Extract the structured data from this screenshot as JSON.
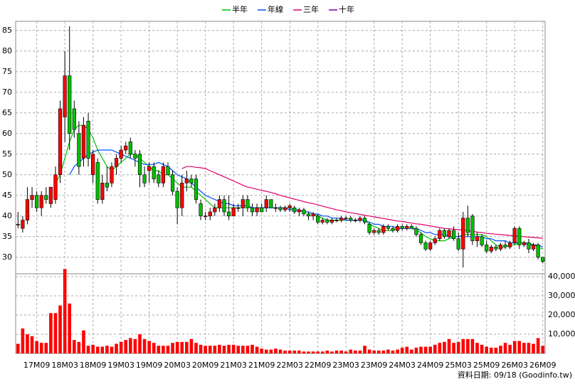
{
  "chart_data": {
    "type": "candlestick",
    "legend": "top",
    "grid": true,
    "up_color": "#ff0000",
    "down_color": "#00c000",
    "categories": [
      null,
      null,
      null,
      null,
      "17M09",
      null,
      null,
      null,
      null,
      null,
      "18M03",
      null,
      null,
      null,
      null,
      null,
      "18M09",
      null,
      null,
      null,
      null,
      null,
      "19M03",
      null,
      null,
      null,
      null,
      null,
      "19M09",
      null,
      null,
      null,
      null,
      null,
      "20M03",
      null,
      null,
      null,
      null,
      null,
      "20M09",
      null,
      null,
      null,
      null,
      null,
      "21M03",
      null,
      null,
      null,
      null,
      null,
      "21M09",
      null,
      null,
      null,
      null,
      null,
      "22M03",
      null,
      null,
      null,
      null,
      null,
      "22M09",
      null,
      null,
      null,
      null,
      null,
      "23M03",
      null,
      null,
      null,
      null,
      null,
      "23M09",
      null,
      null,
      null,
      null,
      null,
      "24M03",
      null,
      null,
      null,
      null,
      null,
      "24M09",
      null,
      null,
      null,
      null,
      null,
      "25M03",
      null,
      null,
      null,
      null,
      null,
      "25M09",
      null,
      null,
      null,
      null,
      null,
      "26M03",
      null,
      null,
      null,
      null,
      null,
      "26M09"
    ],
    "open": [
      38,
      37,
      39,
      44,
      45,
      42,
      45,
      43,
      44,
      50,
      64,
      74,
      66,
      60,
      54,
      63,
      50,
      53,
      44,
      48,
      48,
      52,
      54,
      56,
      58,
      55,
      55,
      50,
      51,
      52,
      50,
      48,
      52,
      50,
      46,
      42,
      48,
      49,
      49,
      43,
      40,
      40,
      41,
      42,
      44,
      41,
      40,
      42,
      42,
      44,
      42,
      41,
      42,
      42,
      44,
      42,
      42,
      41.5,
      42,
      42,
      41,
      41.5,
      40.5,
      40,
      40,
      38.5,
      39,
      38.5,
      39,
      39,
      39.5,
      39.5,
      39,
      39,
      39.5,
      38,
      36,
      36.5,
      36,
      37.5,
      37,
      36.5,
      37.5,
      37,
      37.5,
      37,
      35.5,
      33.5,
      32,
      33.5,
      34.5,
      36.5,
      35,
      36.5,
      34.5,
      32,
      39.5,
      40,
      34,
      35,
      33,
      31.5,
      32.5,
      32,
      33,
      32.5,
      33.5,
      37,
      33,
      33.5,
      32,
      33,
      30
    ],
    "high": [
      41,
      40,
      47,
      47,
      46,
      46,
      47,
      47,
      52,
      68,
      80,
      86,
      68,
      63,
      64,
      65,
      56,
      54,
      50,
      52,
      53,
      55,
      57,
      58,
      59,
      56,
      56,
      52,
      53,
      53,
      51,
      53,
      53,
      51,
      47,
      50,
      51,
      50,
      50,
      44,
      41,
      42,
      43,
      45,
      45,
      45,
      43,
      43,
      45,
      45,
      43,
      43,
      43,
      45,
      44,
      43,
      42.5,
      42.5,
      43,
      42.5,
      42,
      42,
      41,
      41,
      40.5,
      39.5,
      39.5,
      39.5,
      39.5,
      40,
      40,
      40,
      39.5,
      40,
      40,
      38.5,
      37,
      37,
      38,
      38,
      37.5,
      38,
      38,
      38,
      38,
      37.5,
      36,
      34,
      34,
      35,
      37,
      37,
      37,
      37.5,
      36,
      41,
      42.5,
      40.5,
      36,
      35.5,
      34,
      33,
      33,
      33.5,
      34,
      34,
      37.5,
      37.5,
      34,
      34.5,
      33.5,
      33.5,
      30
    ],
    "low": [
      37,
      36,
      38,
      42,
      41,
      40,
      43,
      42,
      43,
      48,
      58,
      56,
      59,
      50,
      52,
      52,
      48,
      43,
      43,
      46,
      47,
      50,
      53,
      55,
      54,
      52,
      47,
      47,
      48,
      48,
      47,
      47,
      50,
      45,
      38,
      40,
      46,
      47,
      43,
      39,
      39,
      39,
      40,
      41,
      40,
      39,
      40,
      41,
      40,
      41,
      40,
      40,
      41,
      41,
      42,
      41,
      41,
      41,
      41,
      40.5,
      40,
      40,
      39,
      39,
      38,
      38,
      38,
      38,
      38.5,
      38.5,
      39,
      38.5,
      38.5,
      38.5,
      38,
      35.5,
      35.5,
      35.5,
      35.5,
      36.5,
      36,
      36,
      36.5,
      36.5,
      37,
      35,
      33,
      31.5,
      31.5,
      33,
      34,
      34.5,
      34.5,
      34,
      31.5,
      27.5,
      35,
      33,
      32.5,
      32.5,
      31,
      31,
      31.5,
      31.5,
      32,
      32,
      33,
      32,
      32.5,
      31,
      31.5,
      29.5,
      28.5
    ],
    "close": [
      38,
      39,
      44,
      45,
      42,
      45,
      44,
      47,
      50,
      66,
      74,
      60,
      61,
      52,
      62,
      54,
      55,
      44,
      48,
      47,
      52,
      54,
      56,
      57,
      55,
      54,
      50,
      48,
      52,
      49,
      48,
      52,
      50,
      46,
      42,
      48,
      49,
      48,
      44,
      40,
      40,
      41,
      42,
      44,
      41,
      40,
      42,
      42,
      44,
      42,
      41,
      42,
      41,
      44,
      42,
      42,
      41.5,
      42,
      42.5,
      41,
      41.5,
      40.5,
      40,
      40.5,
      38.5,
      39,
      38.5,
      39,
      39,
      39.5,
      39.5,
      39,
      39,
      39.5,
      38.5,
      36,
      36.5,
      36,
      37.5,
      37,
      36.5,
      37.5,
      37,
      37.5,
      37,
      35.5,
      33.5,
      32,
      33.5,
      34.5,
      36.5,
      35,
      36.5,
      34.5,
      32,
      39.5,
      36,
      34,
      35,
      33,
      31.5,
      32.5,
      32,
      33,
      32.5,
      33.5,
      37,
      33,
      33.5,
      32,
      33,
      30,
      29
    ],
    "series": [
      {
        "name": "半年",
        "color": "#00c000",
        "values": [
          null,
          null,
          null,
          null,
          null,
          null,
          null,
          null,
          48,
          50,
          54,
          58,
          61,
          62,
          62,
          61,
          59,
          56,
          54,
          52,
          51,
          52,
          53,
          54,
          55,
          55,
          54,
          53,
          52,
          51,
          51,
          50,
          50,
          49,
          48,
          47,
          47,
          47,
          46,
          45,
          44,
          43,
          42,
          42,
          42,
          42,
          42,
          42,
          42,
          42,
          42,
          42,
          42,
          42,
          42,
          42,
          42,
          42,
          42,
          41.5,
          41.5,
          41,
          41,
          40.5,
          40,
          39.5,
          39,
          39,
          39,
          39,
          39,
          39,
          39,
          39,
          39,
          38,
          37.5,
          37,
          36.5,
          36.5,
          36.5,
          37,
          37,
          37,
          37,
          36.5,
          36,
          35,
          34.5,
          34,
          34,
          34,
          34.5,
          35,
          35,
          35.5,
          35.5,
          35.5,
          35.5,
          35.5,
          35,
          34,
          33,
          32.5,
          32.5,
          33,
          33,
          33.5,
          33.5,
          33.5,
          33,
          32.5,
          32
        ]
      },
      {
        "name": "年線",
        "color": "#0050ff",
        "values": [
          null,
          null,
          null,
          null,
          null,
          null,
          null,
          null,
          null,
          null,
          null,
          50,
          52,
          53,
          54,
          55,
          55.5,
          56,
          56,
          56,
          56,
          55.5,
          55,
          54.5,
          54,
          53.5,
          53,
          52.5,
          52.5,
          52.5,
          53,
          52.5,
          52,
          51,
          50,
          49.5,
          49,
          48,
          47,
          46,
          45,
          44.5,
          44,
          43.5,
          43,
          43,
          42.5,
          42.5,
          42.5,
          42.5,
          42,
          42,
          42,
          42,
          42,
          42,
          42,
          42,
          41.5,
          41.5,
          41.5,
          41,
          41,
          40.5,
          40.5,
          40,
          40,
          39.5,
          39.5,
          39.5,
          39,
          39,
          39,
          39,
          39,
          38.5,
          38,
          38,
          37.5,
          37.5,
          37.5,
          37,
          37,
          37,
          37,
          37,
          36.5,
          36,
          36,
          35.5,
          35.5,
          35.5,
          35,
          35,
          35,
          35,
          35,
          35,
          35,
          35,
          34.5,
          34.5,
          34,
          34,
          34,
          33.5,
          33.5,
          33.5,
          33.5,
          33,
          33,
          33,
          32.5
        ]
      },
      {
        "name": "三年",
        "color": "#e0006a",
        "values": [
          null,
          null,
          null,
          null,
          null,
          null,
          null,
          null,
          null,
          null,
          null,
          null,
          null,
          null,
          null,
          null,
          null,
          null,
          null,
          null,
          null,
          null,
          null,
          null,
          null,
          null,
          null,
          null,
          null,
          null,
          null,
          null,
          null,
          null,
          null,
          51.5,
          52,
          52,
          51.8,
          51.7,
          51.5,
          51,
          50.5,
          50,
          49.5,
          49,
          48.5,
          48,
          47.5,
          47,
          46.8,
          46.5,
          46.2,
          46,
          45.7,
          45.4,
          45,
          44.7,
          44.4,
          44.1,
          43.8,
          43.5,
          43.2,
          43,
          42.7,
          42.4,
          42.1,
          41.8,
          41.5,
          41.3,
          41,
          40.8,
          40.6,
          40.4,
          40.2,
          40,
          39.8,
          39.6,
          39.4,
          39.2,
          39,
          38.8,
          38.7,
          38.5,
          38.3,
          38.1,
          38,
          37.8,
          37.6,
          37.4,
          37.2,
          37,
          36.9,
          36.8,
          36.7,
          36.6,
          36.5,
          36.3,
          36.1,
          36,
          35.8,
          35.7,
          35.6,
          35.5,
          35.4,
          35.3,
          35.2,
          35.1,
          35,
          34.9,
          34.8,
          34.7,
          34.6
        ]
      },
      {
        "name": "十年",
        "color": "#8000a0"
      }
    ],
    "ylim": [
      26,
      87.2
    ],
    "yticks": [
      30,
      35,
      40,
      45,
      50,
      55,
      60,
      65,
      70,
      75,
      80,
      85
    ],
    "volume": {
      "type": "bar",
      "color": "#ff0000",
      "values": [
        5000,
        13000,
        10000,
        9000,
        6500,
        5500,
        5500,
        21000,
        21000,
        25000,
        44000,
        26000,
        7000,
        6000,
        12000,
        4000,
        4500,
        3500,
        3500,
        4000,
        3500,
        5000,
        6000,
        7000,
        8000,
        7500,
        10000,
        7500,
        6500,
        5500,
        4000,
        4000,
        4000,
        5500,
        6000,
        6000,
        6000,
        7500,
        5500,
        4500,
        4000,
        4000,
        4000,
        4500,
        4000,
        4500,
        4500,
        4000,
        4000,
        4000,
        4500,
        3500,
        2500,
        2000,
        2000,
        2500,
        2000,
        1500,
        1500,
        1500,
        1500,
        1000,
        1000,
        1000,
        1000,
        1000,
        1500,
        1000,
        1500,
        1500,
        1000,
        2000,
        1500,
        1500,
        4000,
        2000,
        1500,
        1500,
        1500,
        2000,
        1500,
        2000,
        3000,
        3500,
        2000,
        3000,
        3500,
        3500,
        3500,
        4500,
        5500,
        6000,
        7500,
        5500,
        6000,
        7500,
        7500,
        7500,
        5500,
        4500,
        3500,
        3000,
        3000,
        4000,
        5500,
        4500,
        6500,
        6500,
        5500,
        5500,
        5000,
        8000,
        4000
      ],
      "ylim": [
        0,
        41500
      ],
      "yticks": [
        {
          "value": 10000,
          "label": "10,000"
        },
        {
          "value": 20000,
          "label": "20,000"
        },
        {
          "value": 30000,
          "label": "30,000"
        },
        {
          "value": 40000,
          "label": "40,000"
        }
      ]
    },
    "source": "資料日期: 09/18 (Goodinfo.tw)"
  }
}
